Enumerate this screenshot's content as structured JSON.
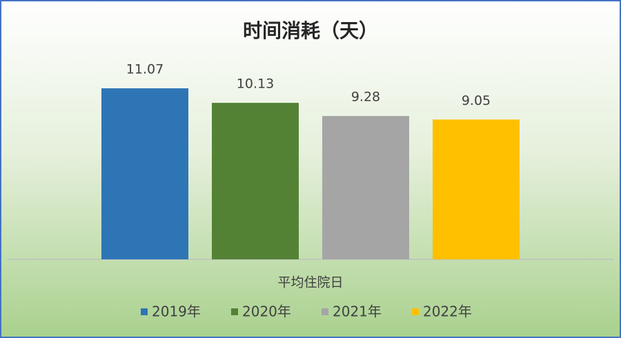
{
  "chart_data": {
    "type": "bar",
    "title": "时间消耗（天）",
    "categories": [
      "平均住院日"
    ],
    "series": [
      {
        "name": "2019年",
        "color": "#2e75b6",
        "values": [
          11.07
        ]
      },
      {
        "name": "2020年",
        "color": "#548235",
        "values": [
          10.13
        ]
      },
      {
        "name": "2021年",
        "color": "#a5a5a5",
        "values": [
          9.28
        ]
      },
      {
        "name": "2022年",
        "color": "#ffc000",
        "values": [
          9.05
        ]
      }
    ],
    "ylim": [
      0,
      12
    ],
    "legend": "bottom"
  }
}
